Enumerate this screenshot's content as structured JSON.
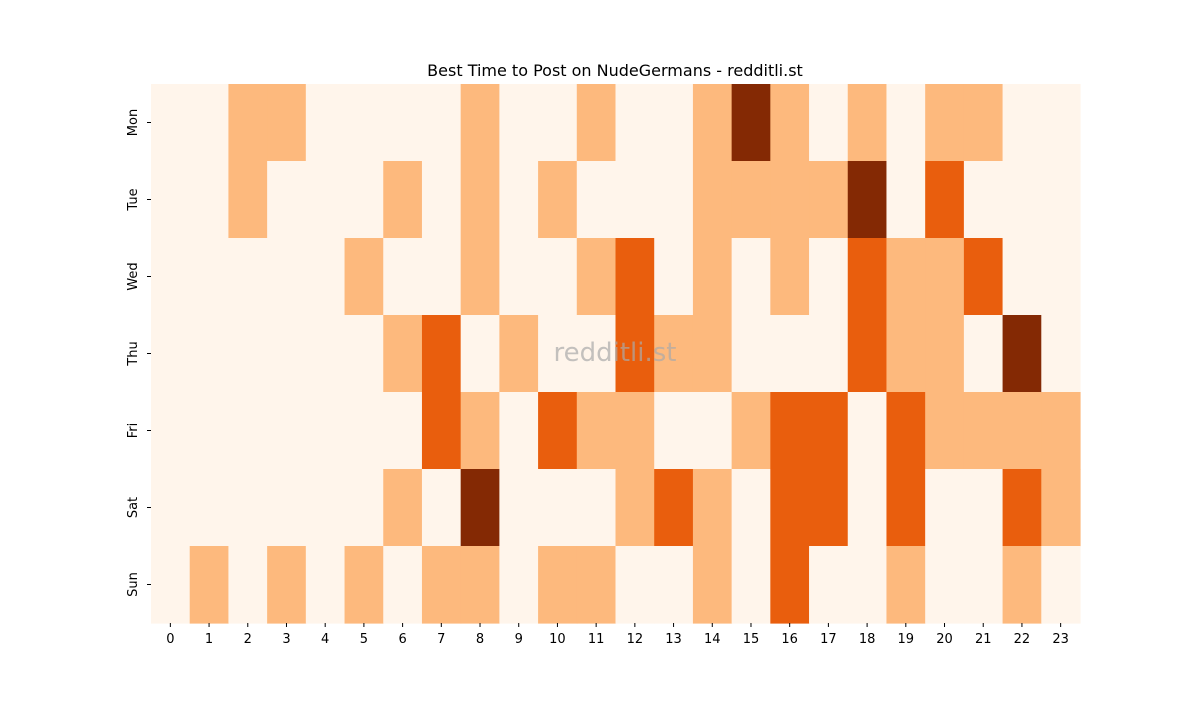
{
  "chart_data": {
    "type": "heatmap",
    "title": "Best Time to Post on NudeGermans - redditli.st",
    "xlabel": "",
    "ylabel": "",
    "x_labels": [
      "0",
      "1",
      "2",
      "3",
      "4",
      "5",
      "6",
      "7",
      "8",
      "9",
      "10",
      "11",
      "12",
      "13",
      "14",
      "15",
      "16",
      "17",
      "18",
      "19",
      "20",
      "21",
      "22",
      "23"
    ],
    "y_labels": [
      "Mon",
      "Tue",
      "Wed",
      "Thu",
      "Fri",
      "Sat",
      "Sun"
    ],
    "values": [
      [
        0,
        0,
        1,
        1,
        0,
        0,
        0,
        0,
        1,
        0,
        0,
        1,
        0,
        0,
        1,
        3,
        1,
        0,
        1,
        0,
        1,
        1,
        0,
        0
      ],
      [
        0,
        0,
        1,
        0,
        0,
        0,
        1,
        0,
        1,
        0,
        1,
        0,
        0,
        0,
        1,
        1,
        1,
        1,
        3,
        0,
        2,
        0,
        0,
        0
      ],
      [
        0,
        0,
        0,
        0,
        0,
        1,
        0,
        0,
        1,
        0,
        0,
        1,
        2,
        0,
        1,
        0,
        1,
        0,
        2,
        1,
        1,
        2,
        0,
        0
      ],
      [
        0,
        0,
        0,
        0,
        0,
        0,
        1,
        2,
        0,
        1,
        0,
        0,
        2,
        1,
        1,
        0,
        0,
        0,
        2,
        1,
        1,
        0,
        3,
        0
      ],
      [
        0,
        0,
        0,
        0,
        0,
        0,
        0,
        2,
        1,
        0,
        2,
        1,
        1,
        0,
        0,
        1,
        2,
        2,
        0,
        2,
        1,
        1,
        1,
        1
      ],
      [
        0,
        0,
        0,
        0,
        0,
        0,
        1,
        0,
        3,
        0,
        0,
        0,
        1,
        2,
        1,
        0,
        2,
        2,
        0,
        2,
        0,
        0,
        2,
        1
      ],
      [
        0,
        1,
        0,
        1,
        0,
        1,
        0,
        1,
        1,
        0,
        1,
        1,
        0,
        0,
        1,
        0,
        2,
        0,
        0,
        1,
        0,
        0,
        1,
        0
      ]
    ],
    "color_levels": [
      "#fff5eb",
      "#fdb97d",
      "#e95e0d",
      "#842904"
    ],
    "watermark": "redditli.st",
    "grid": false,
    "legend": "none"
  }
}
